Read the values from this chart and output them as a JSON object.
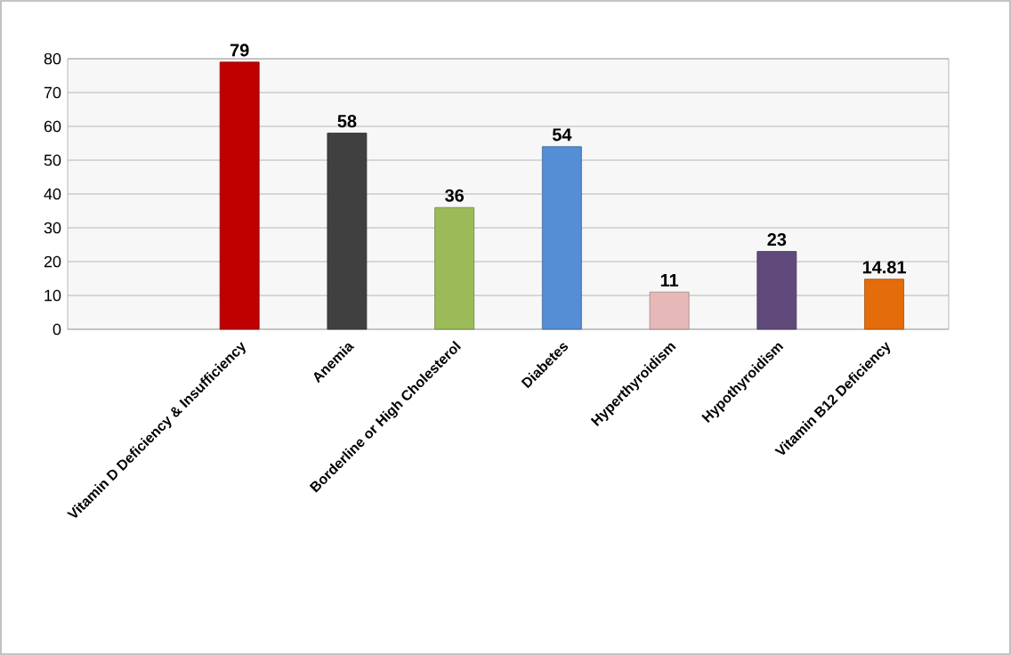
{
  "chart_data": {
    "type": "bar",
    "categories": [
      "Vitamin D Deficiency & Insufficiency",
      "Anemia",
      "Borderline or High Cholesterol",
      "Diabetes",
      "Hyperthyroidism",
      "Hypothyroidism",
      "Vitamin B12 Deficiency"
    ],
    "values": [
      79,
      58,
      36,
      54,
      11,
      23,
      14.81
    ],
    "colors": [
      "#c00000",
      "#404040",
      "#9bbb59",
      "#558ed5",
      "#e6b9b8",
      "#604a7b",
      "#e46c0a"
    ],
    "ylim": [
      0,
      80
    ],
    "yticks": [
      0,
      10,
      20,
      30,
      40,
      50,
      60,
      70,
      80
    ],
    "grid": "y",
    "data_labels": true
  }
}
